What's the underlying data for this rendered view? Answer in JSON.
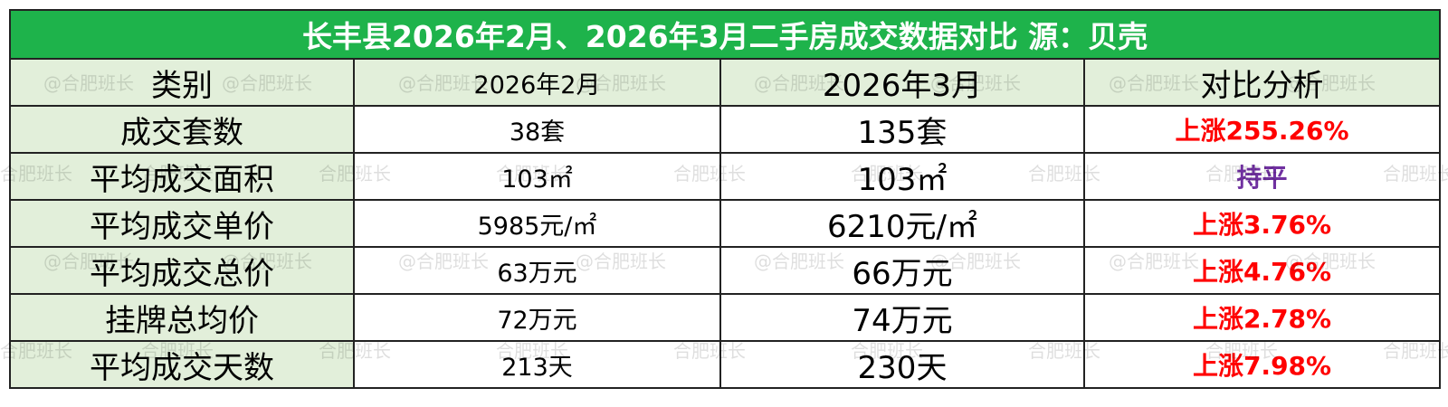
{
  "header": {
    "title": "长丰县2026年2月、2026年3月二手房成交数据对比 源：贝壳"
  },
  "table": {
    "columns": [
      "类别",
      "2026年2月",
      "2026年3月",
      "对比分析"
    ],
    "rows": [
      [
        "成交套数",
        "38套",
        "135套",
        "上涨255.26%"
      ],
      [
        "平均成交面积",
        "103㎡",
        "103㎡",
        "持平"
      ],
      [
        "平均成交单价",
        "5985元/㎡",
        "6210元/㎡",
        "上涨3.76%"
      ],
      [
        "平均成交总价",
        "63万元",
        "66万元",
        "上涨4.76%"
      ],
      [
        "挂牌总均价",
        "72万元",
        "74万元",
        "上涨2.78%"
      ],
      [
        "平均成交天数",
        "213天",
        "230天",
        "上涨7.98%"
      ]
    ]
  },
  "watermarks": [
    "@合肥班长",
    "合肥班长"
  ]
}
